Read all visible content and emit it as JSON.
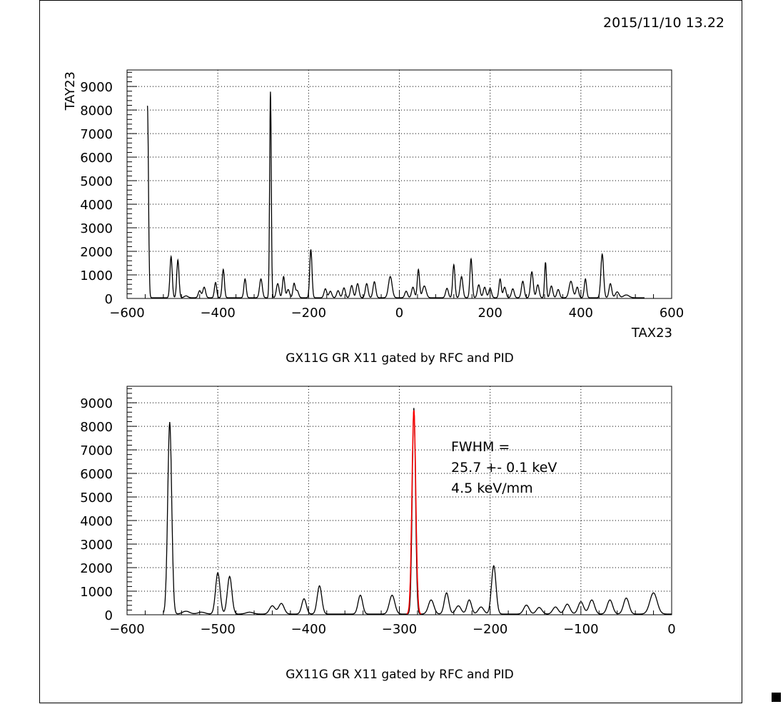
{
  "header": {
    "timestamp": "2015/11/10  13.22"
  },
  "chart_data": [
    {
      "type": "line",
      "title": "GX11G      GR X11 gated by RFC and PID",
      "xlabel": "TAX23",
      "ylabel": "TAY23",
      "xlim": [
        -600,
        600
      ],
      "ylim": [
        0,
        9700
      ],
      "grid": true,
      "xticks": [
        -600,
        -400,
        -200,
        0,
        200,
        400,
        600
      ],
      "yticks": [
        0,
        1000,
        2000,
        3000,
        4000,
        5000,
        6000,
        7000,
        8000,
        9000
      ],
      "xrange_data": [
        -555,
        540
      ],
      "baseline": 30,
      "peaks": [
        [
          -555,
          8150,
          2.2
        ],
        [
          -503,
          1750,
          2.5
        ],
        [
          -488,
          1600,
          2.5
        ],
        [
          -470,
          80,
          4
        ],
        [
          -440,
          300,
          3
        ],
        [
          -430,
          450,
          3
        ],
        [
          -405,
          650,
          2.5
        ],
        [
          -388,
          1200,
          2.5
        ],
        [
          -340,
          800,
          2.5
        ],
        [
          -305,
          800,
          3
        ],
        [
          -284,
          8750,
          1.8
        ],
        [
          -268,
          600,
          3
        ],
        [
          -255,
          900,
          2.5
        ],
        [
          -245,
          350,
          3
        ],
        [
          -232,
          600,
          2.5
        ],
        [
          -225,
          300,
          3
        ],
        [
          -195,
          2050,
          2.5
        ],
        [
          -163,
          380,
          3
        ],
        [
          -152,
          280,
          3
        ],
        [
          -135,
          300,
          3
        ],
        [
          -122,
          420,
          3
        ],
        [
          -105,
          520,
          3
        ],
        [
          -92,
          600,
          3
        ],
        [
          -72,
          600,
          3
        ],
        [
          -55,
          680,
          3
        ],
        [
          -20,
          900,
          4
        ],
        [
          15,
          280,
          3
        ],
        [
          30,
          450,
          3
        ],
        [
          42,
          1200,
          2.5
        ],
        [
          55,
          500,
          4
        ],
        [
          105,
          400,
          3
        ],
        [
          120,
          1400,
          2.5
        ],
        [
          137,
          900,
          3
        ],
        [
          158,
          1650,
          2.5
        ],
        [
          175,
          550,
          3
        ],
        [
          188,
          450,
          3
        ],
        [
          200,
          400,
          3
        ],
        [
          222,
          800,
          2.5
        ],
        [
          232,
          450,
          3
        ],
        [
          250,
          380,
          3
        ],
        [
          272,
          700,
          3
        ],
        [
          292,
          1100,
          3
        ],
        [
          305,
          550,
          3
        ],
        [
          322,
          1500,
          2
        ],
        [
          335,
          500,
          3
        ],
        [
          350,
          350,
          3
        ],
        [
          378,
          700,
          4
        ],
        [
          392,
          450,
          3
        ],
        [
          410,
          800,
          2.5
        ],
        [
          447,
          1850,
          3
        ],
        [
          465,
          600,
          3
        ],
        [
          480,
          250,
          4
        ],
        [
          500,
          120,
          6
        ]
      ]
    },
    {
      "type": "line",
      "title": "GX11G      GR X11 gated by RFC and PID",
      "xlabel": "",
      "ylabel": "",
      "xlim": [
        -600,
        0
      ],
      "ylim": [
        0,
        9700
      ],
      "grid": true,
      "xticks": [
        -600,
        -500,
        -400,
        -300,
        -200,
        -100,
        0
      ],
      "yticks": [
        0,
        1000,
        2000,
        3000,
        4000,
        5000,
        6000,
        7000,
        8000,
        9000
      ],
      "xrange_data": [
        -560,
        0
      ],
      "baseline": 30,
      "fit": {
        "color": "#ff0000",
        "x_range": [
          -292,
          -276
        ],
        "center": -284,
        "height": 8650,
        "sigma": 2.1,
        "label_lines": [
          "FWHM =",
          "25.7 +-   0.1 keV",
          "4.5 keV/mm"
        ]
      },
      "peaks": [
        [
          -553,
          8150,
          2.2
        ],
        [
          -535,
          120,
          4
        ],
        [
          -518,
          80,
          4
        ],
        [
          -500,
          1750,
          2.5
        ],
        [
          -487,
          1600,
          2.5
        ],
        [
          -465,
          80,
          4
        ],
        [
          -440,
          350,
          3
        ],
        [
          -430,
          450,
          3
        ],
        [
          -405,
          650,
          2.5
        ],
        [
          -388,
          1200,
          2.5
        ],
        [
          -343,
          800,
          2.5
        ],
        [
          -308,
          800,
          3
        ],
        [
          -284,
          8750,
          1.8
        ],
        [
          -265,
          600,
          3
        ],
        [
          -248,
          900,
          2.5
        ],
        [
          -235,
          350,
          3
        ],
        [
          -223,
          600,
          2.5
        ],
        [
          -210,
          300,
          3
        ],
        [
          -196,
          2050,
          2.5
        ],
        [
          -160,
          380,
          3
        ],
        [
          -146,
          280,
          3
        ],
        [
          -128,
          300,
          3
        ],
        [
          -115,
          420,
          3
        ],
        [
          -100,
          520,
          3
        ],
        [
          -88,
          600,
          3
        ],
        [
          -68,
          600,
          3
        ],
        [
          -50,
          680,
          3
        ],
        [
          -20,
          900,
          4
        ]
      ]
    }
  ]
}
